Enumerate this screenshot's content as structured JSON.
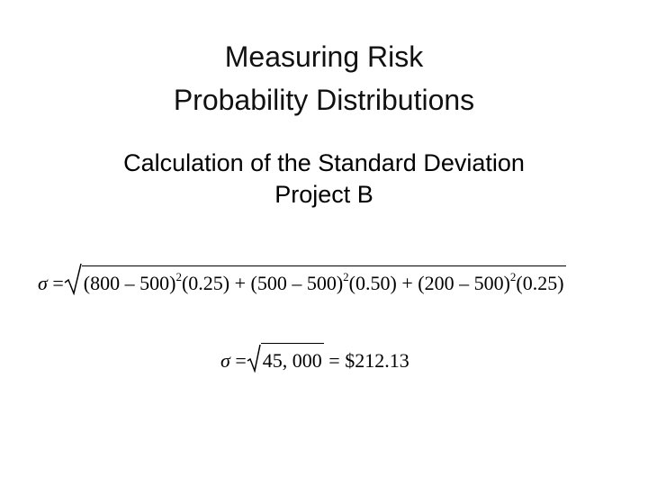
{
  "title": [
    "Measuring Risk",
    "Probability Distributions"
  ],
  "subtitle": [
    "Calculation of the Standard Deviation",
    "Project B"
  ],
  "equation_1": {
    "lhs": "σ",
    "equals": "=",
    "terms": [
      {
        "base": "(800 – 500)",
        "power": "2",
        "weight": "(0.25)"
      },
      {
        "base": "(500 – 500)",
        "power": "2",
        "weight": "(0.50)"
      },
      {
        "base": "(200 – 500)",
        "power": "2",
        "weight": "(0.25)"
      }
    ],
    "operators": [
      "+",
      "+"
    ]
  },
  "equation_2": {
    "lhs": "σ",
    "equals": "=",
    "radicand": "45, 000",
    "equals_2": "=",
    "result": "$212.13"
  }
}
